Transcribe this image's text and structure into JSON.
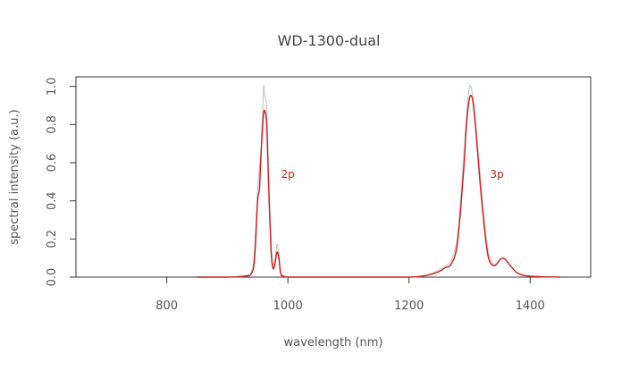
{
  "chart_data": {
    "type": "line",
    "title": "WD-1300-dual",
    "xlabel": "wavelength (nm)",
    "ylabel": "spectral intensity (a.u.)",
    "xlim": [
      650,
      1500
    ],
    "ylim": [
      0,
      1.05
    ],
    "xticks": [
      800,
      1000,
      1200,
      1400
    ],
    "xtick_labels": [
      "800",
      "1000",
      "1200",
      "1400"
    ],
    "yticks": [
      0.0,
      0.2,
      0.4,
      0.6,
      0.8,
      1.0
    ],
    "ytick_labels": [
      "0.0",
      "0.2",
      "0.4",
      "0.6",
      "0.8",
      "1.0"
    ],
    "grid": false,
    "colors": {
      "measured": "#cc1f1f",
      "envelope": "#c8c8c8",
      "axis": "#333333"
    },
    "series": [
      {
        "role": "envelope",
        "x": [
          850,
          900,
          930,
          940,
          945,
          950,
          955,
          958,
          960,
          962,
          965,
          968,
          972,
          975,
          978,
          982,
          985,
          988,
          992,
          1000,
          1020,
          1100,
          1200,
          1230,
          1250,
          1260,
          1270,
          1280,
          1290,
          1295,
          1300,
          1305,
          1310,
          1320,
          1330,
          1340,
          1350,
          1355,
          1360,
          1370,
          1380,
          1400,
          1450
        ],
        "values": [
          0,
          0,
          0.01,
          0.03,
          0.15,
          0.45,
          0.65,
          0.85,
          1.0,
          0.95,
          0.88,
          0.55,
          0.2,
          0.07,
          0.08,
          0.17,
          0.12,
          0.03,
          0.01,
          0,
          0,
          0,
          0,
          0.01,
          0.04,
          0.06,
          0.09,
          0.22,
          0.62,
          0.85,
          1.0,
          0.96,
          0.82,
          0.45,
          0.15,
          0.07,
          0.09,
          0.1,
          0.09,
          0.05,
          0.02,
          0.005,
          0
        ]
      },
      {
        "role": "measured",
        "x": [
          850,
          900,
          930,
          940,
          945,
          950,
          953,
          955,
          958,
          960,
          962,
          965,
          968,
          972,
          975,
          978,
          982,
          985,
          988,
          992,
          1000,
          1020,
          1100,
          1200,
          1230,
          1250,
          1260,
          1270,
          1280,
          1290,
          1295,
          1300,
          1305,
          1310,
          1320,
          1330,
          1340,
          1350,
          1355,
          1360,
          1370,
          1380,
          1400,
          1450
        ],
        "values": [
          0,
          0,
          0.005,
          0.02,
          0.1,
          0.4,
          0.46,
          0.6,
          0.78,
          0.86,
          0.87,
          0.8,
          0.5,
          0.15,
          0.05,
          0.06,
          0.13,
          0.1,
          0.02,
          0.005,
          0,
          0,
          0,
          0,
          0.01,
          0.03,
          0.05,
          0.07,
          0.18,
          0.55,
          0.8,
          0.94,
          0.93,
          0.78,
          0.4,
          0.12,
          0.06,
          0.09,
          0.1,
          0.09,
          0.05,
          0.02,
          0.005,
          0
        ]
      }
    ],
    "annotations": [
      {
        "text": "2p",
        "x": 1000,
        "y": 0.52
      },
      {
        "text": "3p",
        "x": 1345,
        "y": 0.52
      }
    ]
  }
}
